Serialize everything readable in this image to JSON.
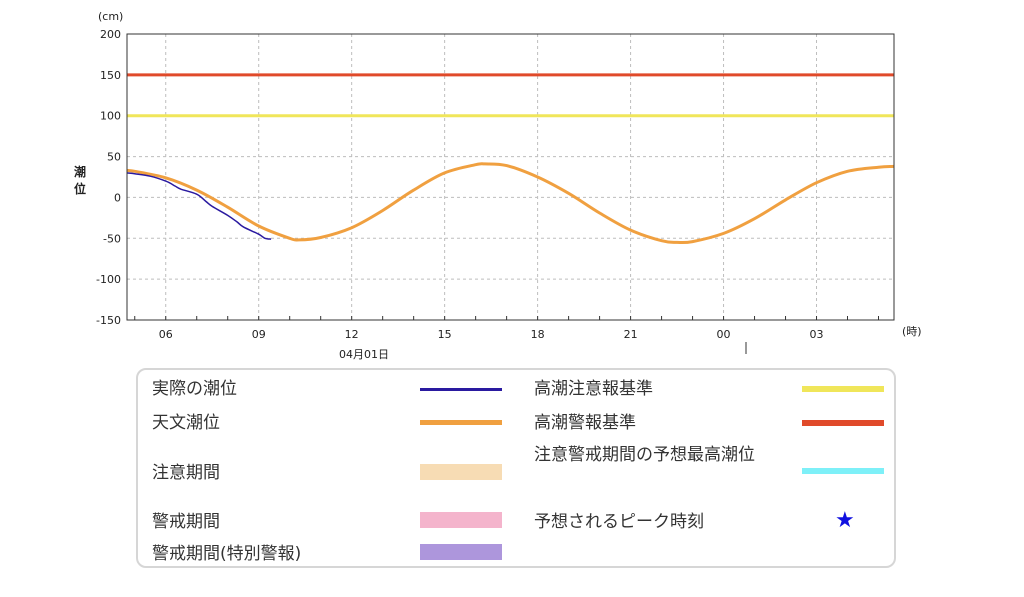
{
  "chart_data": {
    "type": "line",
    "yunit": "(cm)",
    "xunit": "(時)",
    "ylabel": "潮位",
    "date_label": "04月01日",
    "ylim": [
      -150,
      200
    ],
    "yticks": [
      200,
      150,
      100,
      50,
      0,
      -50,
      -100,
      -150
    ],
    "xlim_hours": [
      4.75,
      29.5
    ],
    "xticks": [
      {
        "h": 6,
        "label": "06"
      },
      {
        "h": 9,
        "label": "09"
      },
      {
        "h": 12,
        "label": "12"
      },
      {
        "h": 15,
        "label": "15"
      },
      {
        "h": 18,
        "label": "18"
      },
      {
        "h": 21,
        "label": "21"
      },
      {
        "h": 24,
        "label": "00"
      },
      {
        "h": 27,
        "label": "03"
      }
    ],
    "x_minor_step_hours": 1,
    "grid": true,
    "thresholds": [
      {
        "name": "高潮警報基準",
        "value": 150,
        "color": "#e04a2a"
      },
      {
        "name": "高潮注意報基準",
        "value": 100,
        "color": "#f0e65a"
      }
    ],
    "series": [
      {
        "name": "天文潮位",
        "color": "#f0a040",
        "x_hours": [
          4.75,
          5,
          6,
          7,
          8,
          9,
          10,
          10.3,
          11,
          12,
          13,
          14,
          15,
          16,
          16.3,
          17,
          18,
          19,
          20,
          21,
          22,
          22.5,
          23,
          24,
          25,
          26,
          27,
          28,
          29,
          29.5
        ],
        "values": [
          33,
          32,
          24,
          9,
          -12,
          -35,
          -50,
          -52,
          -49,
          -37,
          -16,
          9,
          30,
          40,
          41,
          39,
          25,
          5,
          -19,
          -40,
          -53,
          -55,
          -54,
          -44,
          -26,
          -3,
          18,
          32,
          37,
          38
        ]
      },
      {
        "name": "実際の潮位",
        "color": "#2a1aa0",
        "x_hours": [
          4.75,
          5,
          5.5,
          6,
          6.3,
          6.5,
          7,
          7.3,
          7.5,
          8,
          8.3,
          8.5,
          9,
          9.2,
          9.4
        ],
        "values": [
          30,
          29,
          26,
          20,
          14,
          10,
          4,
          -5,
          -11,
          -22,
          -30,
          -36,
          -45,
          -50,
          -51
        ]
      }
    ]
  },
  "legend": {
    "actual": {
      "label": "実際の潮位",
      "color": "#2a1aa0"
    },
    "astronomical": {
      "label": "天文潮位",
      "color": "#f0a040"
    },
    "caution_period": {
      "label": "注意期間",
      "color": "#f7dcb4"
    },
    "warning_period": {
      "label": "警戒期間",
      "color": "#f4b4cc"
    },
    "special_warning_period": {
      "label": "警戒期間(特別警報)",
      "color": "#ad96dc"
    },
    "advisory_std": {
      "label": "高潮注意報基準",
      "color": "#f0e65a"
    },
    "warning_std": {
      "label": "高潮警報基準",
      "color": "#e04a2a"
    },
    "predicted_max": {
      "label": "注意警戒期間の予想最高潮位",
      "color": "#7ef0f8"
    },
    "peak_time": {
      "label": "予想されるピーク時刻",
      "symbol": "★",
      "color": "#1010e0"
    }
  }
}
